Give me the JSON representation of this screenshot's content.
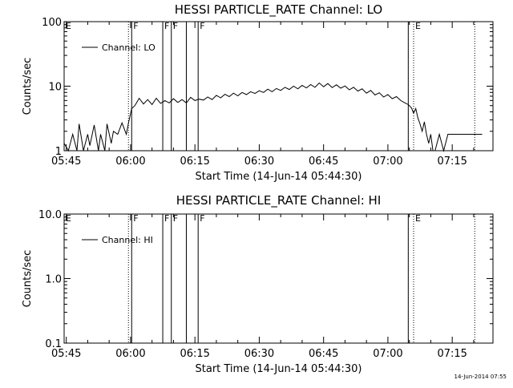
{
  "footer": {
    "timestamp": "14-Jun-2014 07:55"
  },
  "chart_data": [
    {
      "type": "line",
      "title": "HESSI PARTICLE_RATE Channel: LO",
      "xlabel": "Start Time (14-Jun-14 05:44:30)",
      "ylabel": "Counts/sec",
      "y_scale": "log",
      "ylim": [
        1,
        100
      ],
      "yticks": [
        "1",
        "10",
        "100"
      ],
      "xlim": [
        "05:44:30",
        "07:24:30"
      ],
      "xticks": [
        "05:45",
        "06:00",
        "06:15",
        "06:30",
        "06:45",
        "07:00",
        "07:15"
      ],
      "legend": {
        "position": "top-left",
        "entries": [
          "Channel: LO"
        ]
      },
      "markers": [
        {
          "time": "05:59:30",
          "style": "dotted",
          "label": ""
        },
        {
          "time": "06:00:15",
          "style": "solid",
          "label": "F"
        },
        {
          "time": "06:07:30",
          "style": "solid",
          "label": "F"
        },
        {
          "time": "06:09:30",
          "style": "solid",
          "label": "F"
        },
        {
          "time": "06:13:00",
          "style": "solid",
          "label": ""
        },
        {
          "time": "06:15:45",
          "style": "solid",
          "label": "F"
        },
        {
          "time": "07:04:45",
          "style": "solid",
          "label": ""
        },
        {
          "time": "07:06:00",
          "style": "dotted",
          "label": "E"
        },
        {
          "time": "07:20:15",
          "style": "dotted",
          "label": ""
        }
      ],
      "edge_labels": [
        {
          "time": "05:44:30",
          "label": "E"
        }
      ],
      "series": [
        {
          "name": "Channel: LO",
          "points": [
            [
              "05:44:30",
              1.3
            ],
            [
              "05:45:30",
              1.0
            ],
            [
              "05:46:30",
              1.8
            ],
            [
              "05:47:30",
              1.0
            ],
            [
              "05:48:00",
              2.6
            ],
            [
              "05:49:00",
              1.0
            ],
            [
              "05:50:00",
              1.8
            ],
            [
              "05:50:30",
              1.2
            ],
            [
              "05:51:30",
              2.5
            ],
            [
              "05:52:30",
              1.0
            ],
            [
              "05:53:00",
              1.8
            ],
            [
              "05:54:00",
              1.0
            ],
            [
              "05:54:30",
              2.6
            ],
            [
              "05:55:30",
              1.3
            ],
            [
              "05:56:00",
              2.0
            ],
            [
              "05:57:00",
              1.8
            ],
            [
              "05:58:00",
              2.7
            ],
            [
              "05:59:00",
              1.8
            ],
            [
              "05:59:30",
              2.7
            ],
            [
              "06:00:15",
              4.5
            ],
            [
              "06:01:00",
              5.0
            ],
            [
              "06:02:00",
              6.5
            ],
            [
              "06:03:00",
              5.3
            ],
            [
              "06:04:00",
              6.2
            ],
            [
              "06:05:00",
              5.2
            ],
            [
              "06:06:00",
              6.5
            ],
            [
              "06:07:00",
              5.4
            ],
            [
              "06:08:00",
              6.0
            ],
            [
              "06:09:00",
              5.5
            ],
            [
              "06:10:00",
              6.4
            ],
            [
              "06:11:00",
              5.6
            ],
            [
              "06:12:00",
              6.2
            ],
            [
              "06:13:00",
              5.5
            ],
            [
              "06:14:00",
              6.7
            ],
            [
              "06:15:00",
              6.0
            ],
            [
              "06:16:00",
              6.3
            ],
            [
              "06:17:00",
              6.1
            ],
            [
              "06:18:00",
              6.8
            ],
            [
              "06:19:00",
              6.2
            ],
            [
              "06:20:00",
              7.2
            ],
            [
              "06:21:00",
              6.6
            ],
            [
              "06:22:00",
              7.5
            ],
            [
              "06:23:00",
              6.9
            ],
            [
              "06:24:00",
              7.8
            ],
            [
              "06:25:00",
              7.1
            ],
            [
              "06:26:00",
              8.0
            ],
            [
              "06:27:00",
              7.4
            ],
            [
              "06:28:00",
              8.2
            ],
            [
              "06:29:00",
              7.7
            ],
            [
              "06:30:00",
              8.5
            ],
            [
              "06:31:00",
              8.0
            ],
            [
              "06:32:00",
              9.0
            ],
            [
              "06:33:00",
              8.2
            ],
            [
              "06:34:00",
              9.2
            ],
            [
              "06:35:00",
              8.6
            ],
            [
              "06:36:00",
              9.6
            ],
            [
              "06:37:00",
              8.9
            ],
            [
              "06:38:00",
              10.0
            ],
            [
              "06:39:00",
              9.1
            ],
            [
              "06:40:00",
              10.3
            ],
            [
              "06:41:00",
              9.4
            ],
            [
              "06:42:00",
              10.6
            ],
            [
              "06:43:00",
              9.6
            ],
            [
              "06:44:00",
              11.2
            ],
            [
              "06:45:00",
              9.8
            ],
            [
              "06:46:00",
              11.0
            ],
            [
              "06:47:00",
              9.5
            ],
            [
              "06:48:00",
              10.5
            ],
            [
              "06:49:00",
              9.3
            ],
            [
              "06:50:00",
              10.1
            ],
            [
              "06:51:00",
              8.8
            ],
            [
              "06:52:00",
              9.6
            ],
            [
              "06:53:00",
              8.4
            ],
            [
              "06:54:00",
              9.1
            ],
            [
              "06:55:00",
              7.8
            ],
            [
              "06:56:00",
              8.6
            ],
            [
              "06:57:00",
              7.3
            ],
            [
              "06:58:00",
              7.9
            ],
            [
              "06:59:00",
              6.8
            ],
            [
              "07:00:00",
              7.4
            ],
            [
              "07:01:00",
              6.4
            ],
            [
              "07:02:00",
              6.9
            ],
            [
              "07:03:00",
              6.0
            ],
            [
              "07:04:00",
              5.5
            ],
            [
              "07:04:45",
              5.2
            ],
            [
              "07:05:30",
              4.6
            ],
            [
              "07:06:00",
              3.8
            ],
            [
              "07:06:30",
              4.5
            ],
            [
              "07:07:00",
              3.2
            ],
            [
              "07:07:30",
              2.6
            ],
            [
              "07:08:00",
              2.0
            ],
            [
              "07:08:30",
              2.8
            ],
            [
              "07:09:00",
              1.8
            ],
            [
              "07:09:30",
              1.3
            ],
            [
              "07:10:00",
              1.8
            ],
            [
              "07:10:30",
              1.0
            ],
            [
              "07:11:00",
              1.0
            ],
            [
              "07:12:00",
              1.8
            ],
            [
              "07:13:00",
              1.0
            ],
            [
              "07:14:00",
              1.8
            ],
            [
              "07:20:15",
              1.8
            ],
            [
              "07:22:00",
              1.8
            ]
          ]
        }
      ]
    },
    {
      "type": "line",
      "title": "HESSI PARTICLE_RATE Channel: HI",
      "xlabel": "Start Time (14-Jun-14 05:44:30)",
      "ylabel": "Counts/sec",
      "y_scale": "log",
      "ylim": [
        0.1,
        10.0
      ],
      "yticks": [
        "0.1",
        "1.0",
        "10.0"
      ],
      "xlim": [
        "05:44:30",
        "07:24:30"
      ],
      "xticks": [
        "05:45",
        "06:00",
        "06:15",
        "06:30",
        "06:45",
        "07:00",
        "07:15"
      ],
      "legend": {
        "position": "top-left",
        "entries": [
          "Channel: HI"
        ]
      },
      "markers": [
        {
          "time": "05:59:30",
          "style": "dotted",
          "label": ""
        },
        {
          "time": "06:00:15",
          "style": "solid",
          "label": "F"
        },
        {
          "time": "06:07:30",
          "style": "solid",
          "label": "F"
        },
        {
          "time": "06:09:30",
          "style": "solid",
          "label": "F"
        },
        {
          "time": "06:13:00",
          "style": "solid",
          "label": ""
        },
        {
          "time": "06:15:45",
          "style": "solid",
          "label": "F"
        },
        {
          "time": "07:04:45",
          "style": "solid",
          "label": ""
        },
        {
          "time": "07:06:00",
          "style": "dotted",
          "label": "E"
        },
        {
          "time": "07:20:15",
          "style": "dotted",
          "label": ""
        }
      ],
      "edge_labels": [
        {
          "time": "05:44:30",
          "label": "E"
        }
      ],
      "series": [
        {
          "name": "Channel: HI",
          "points": []
        }
      ]
    }
  ]
}
